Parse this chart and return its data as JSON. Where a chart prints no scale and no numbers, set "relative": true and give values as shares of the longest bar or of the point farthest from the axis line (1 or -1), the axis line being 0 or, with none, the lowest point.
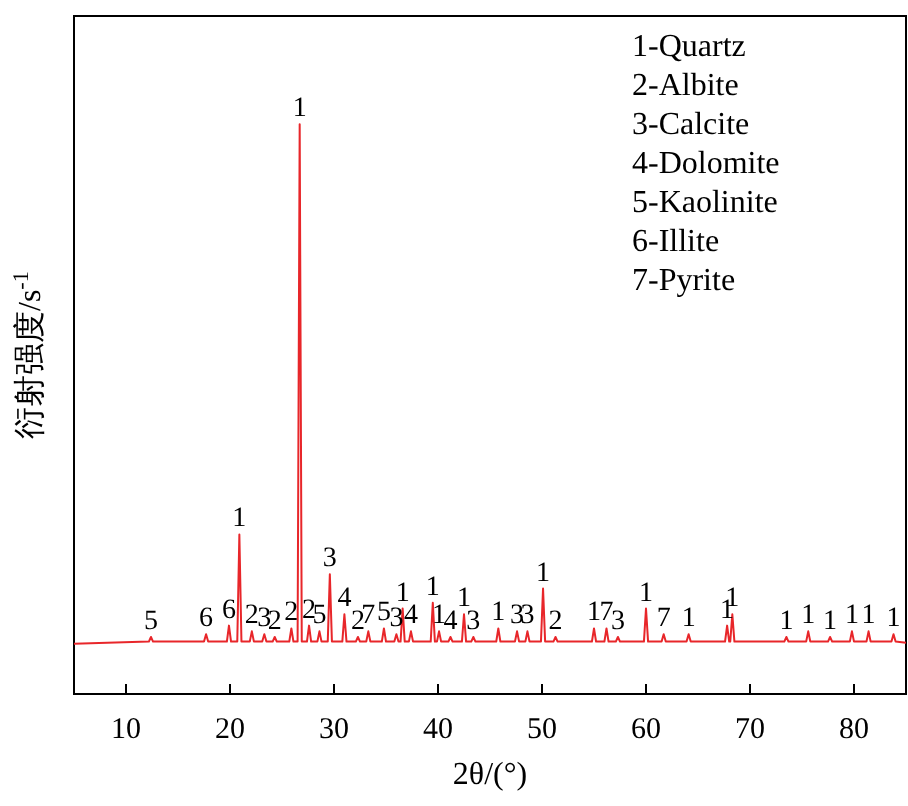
{
  "chart_data": {
    "type": "line",
    "relative": true,
    "xlabel": "2θ/(°)",
    "ylabel": "衍射强度/s$^{-1}$",
    "xlim": [
      5,
      85
    ],
    "xticks": [
      10,
      20,
      30,
      40,
      50,
      60,
      70,
      80
    ],
    "grid": false,
    "marker": "none",
    "line_style": "solid",
    "x": [
      5,
      12.2,
      12.4,
      12.6,
      17.5,
      17.7,
      17.9,
      19.7,
      19.9,
      20.1,
      20.7,
      20.9,
      21.1,
      21.9,
      22.1,
      22.3,
      23.1,
      23.3,
      23.5,
      24.1,
      24.3,
      24.5,
      25.7,
      25.9,
      26.1,
      26.5,
      26.7,
      26.9,
      27.4,
      27.6,
      27.8,
      28.4,
      28.6,
      28.8,
      29.4,
      29.6,
      29.8,
      30.8,
      31.0,
      31.2,
      32.1,
      32.3,
      32.5,
      33.1,
      33.3,
      33.5,
      34.6,
      34.8,
      35.0,
      35.8,
      36.0,
      36.2,
      36.4,
      36.6,
      36.8,
      37.2,
      37.4,
      37.6,
      39.3,
      39.5,
      39.7,
      39.9,
      40.1,
      40.3,
      41.0,
      41.2,
      41.4,
      42.3,
      42.5,
      42.7,
      43.2,
      43.4,
      43.6,
      45.6,
      45.8,
      46.0,
      47.4,
      47.6,
      47.8,
      48.4,
      48.6,
      48.8,
      49.9,
      50.1,
      50.3,
      51.1,
      51.3,
      51.5,
      54.8,
      55.0,
      55.2,
      56.0,
      56.2,
      56.4,
      57.1,
      57.3,
      57.5,
      59.8,
      60.0,
      60.2,
      61.5,
      61.7,
      61.9,
      63.9,
      64.1,
      64.3,
      67.6,
      67.8,
      68.0,
      68.1,
      68.3,
      68.5,
      73.3,
      73.5,
      73.7,
      75.4,
      75.6,
      75.8,
      77.5,
      77.7,
      77.9,
      79.6,
      79.8,
      80.0,
      81.2,
      81.4,
      81.6,
      83.6,
      83.8,
      84.0,
      85
    ],
    "series": [
      {
        "color": "#e8262a",
        "values": [
          0.088,
          0.092,
          0.1,
          0.092,
          0.092,
          0.105,
          0.092,
          0.092,
          0.12,
          0.092,
          0.092,
          0.28,
          0.092,
          0.092,
          0.11,
          0.092,
          0.092,
          0.105,
          0.092,
          0.092,
          0.1,
          0.092,
          0.092,
          0.115,
          0.092,
          0.092,
          1.0,
          0.092,
          0.092,
          0.12,
          0.092,
          0.092,
          0.11,
          0.092,
          0.092,
          0.21,
          0.092,
          0.092,
          0.14,
          0.092,
          0.092,
          0.1,
          0.092,
          0.092,
          0.11,
          0.092,
          0.092,
          0.115,
          0.092,
          0.092,
          0.105,
          0.092,
          0.092,
          0.15,
          0.092,
          0.092,
          0.11,
          0.092,
          0.092,
          0.16,
          0.092,
          0.092,
          0.11,
          0.092,
          0.092,
          0.1,
          0.092,
          0.092,
          0.14,
          0.092,
          0.092,
          0.1,
          0.092,
          0.092,
          0.115,
          0.092,
          0.092,
          0.11,
          0.092,
          0.092,
          0.11,
          0.092,
          0.092,
          0.185,
          0.092,
          0.092,
          0.1,
          0.092,
          0.092,
          0.115,
          0.092,
          0.092,
          0.115,
          0.092,
          0.092,
          0.1,
          0.092,
          0.092,
          0.15,
          0.092,
          0.092,
          0.105,
          0.092,
          0.092,
          0.105,
          0.092,
          0.092,
          0.12,
          0.092,
          0.092,
          0.14,
          0.092,
          0.092,
          0.1,
          0.092,
          0.092,
          0.11,
          0.092,
          0.092,
          0.1,
          0.092,
          0.092,
          0.11,
          0.092,
          0.092,
          0.11,
          0.092,
          0.092,
          0.105,
          0.092,
          0.09
        ]
      }
    ],
    "annotations": [
      "1-Quartz",
      "2-Albite",
      "3-Calcite",
      "4-Dolomite",
      "5-Kaolinite",
      "6-Illite",
      "7-Pyrite",
      {
        "text": "5",
        "x": 12.4,
        "y": 0.1
      },
      {
        "text": "6",
        "x": 17.7,
        "y": 0.105
      },
      {
        "text": "6",
        "x": 19.9,
        "y": 0.12
      },
      {
        "text": "1",
        "x": 20.9,
        "y": 0.28
      },
      {
        "text": "2",
        "x": 22.1,
        "y": 0.11
      },
      {
        "text": "3",
        "x": 23.3,
        "y": 0.105
      },
      {
        "text": "2",
        "x": 24.3,
        "y": 0.1
      },
      {
        "text": "2",
        "x": 25.9,
        "y": 0.115
      },
      {
        "text": "1",
        "x": 26.7,
        "y": 1.0
      },
      {
        "text": "2",
        "x": 27.6,
        "y": 0.12
      },
      {
        "text": "5",
        "x": 28.6,
        "y": 0.11
      },
      {
        "text": "3",
        "x": 29.6,
        "y": 0.21
      },
      {
        "text": "4",
        "x": 31.0,
        "y": 0.14
      },
      {
        "text": "2",
        "x": 32.3,
        "y": 0.1
      },
      {
        "text": "7",
        "x": 33.3,
        "y": 0.11
      },
      {
        "text": "5",
        "x": 34.8,
        "y": 0.115
      },
      {
        "text": "3",
        "x": 36.0,
        "y": 0.105
      },
      {
        "text": "1",
        "x": 36.6,
        "y": 0.15
      },
      {
        "text": "4",
        "x": 37.4,
        "y": 0.11
      },
      {
        "text": "1",
        "x": 39.5,
        "y": 0.16
      },
      {
        "text": "1",
        "x": 40.1,
        "y": 0.11
      },
      {
        "text": "4",
        "x": 41.2,
        "y": 0.1
      },
      {
        "text": "1",
        "x": 42.5,
        "y": 0.14
      },
      {
        "text": "3",
        "x": 43.4,
        "y": 0.1
      },
      {
        "text": "1",
        "x": 45.8,
        "y": 0.115
      },
      {
        "text": "3",
        "x": 47.6,
        "y": 0.11
      },
      {
        "text": "3",
        "x": 48.6,
        "y": 0.11
      },
      {
        "text": "1",
        "x": 50.1,
        "y": 0.185
      },
      {
        "text": "2",
        "x": 51.3,
        "y": 0.1
      },
      {
        "text": "1",
        "x": 55.0,
        "y": 0.115
      },
      {
        "text": "7",
        "x": 56.2,
        "y": 0.115
      },
      {
        "text": "3",
        "x": 57.3,
        "y": 0.1
      },
      {
        "text": "1",
        "x": 60.0,
        "y": 0.15
      },
      {
        "text": "7",
        "x": 61.7,
        "y": 0.105
      },
      {
        "text": "1",
        "x": 64.1,
        "y": 0.105
      },
      {
        "text": "1",
        "x": 67.8,
        "y": 0.12
      },
      {
        "text": "1",
        "x": 68.3,
        "y": 0.14
      },
      {
        "text": "1",
        "x": 73.5,
        "y": 0.1
      },
      {
        "text": "1",
        "x": 75.6,
        "y": 0.11
      },
      {
        "text": "1",
        "x": 77.7,
        "y": 0.1
      },
      {
        "text": "1",
        "x": 79.8,
        "y": 0.11
      },
      {
        "text": "1",
        "x": 81.4,
        "y": 0.11
      },
      {
        "text": "1",
        "x": 83.8,
        "y": 0.105
      }
    ]
  }
}
